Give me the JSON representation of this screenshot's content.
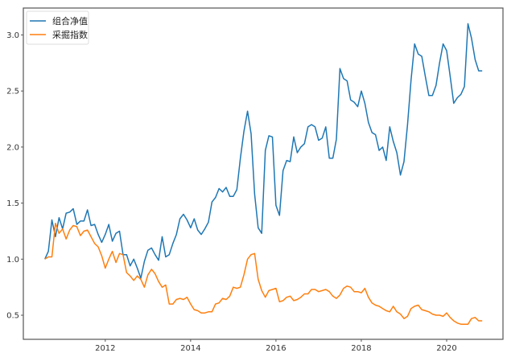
{
  "chart_data": {
    "type": "line",
    "title": "",
    "xlabel": "",
    "ylabel": "",
    "xlim": [
      2010.08,
      2021.32
    ],
    "ylim": [
      0.285,
      3.24
    ],
    "grid": false,
    "legend_position": "top-left",
    "x_ticks": [
      "2012",
      "2014",
      "2016",
      "2018",
      "2020"
    ],
    "y_ticks": [
      "0.5",
      "1.0",
      "1.5",
      "2.0",
      "2.5",
      "3.0"
    ],
    "x": [
      "2010-08",
      "2010-09",
      "2010-10",
      "2010-11",
      "2010-12",
      "2011-01",
      "2011-02",
      "2011-03",
      "2011-04",
      "2011-05",
      "2011-06",
      "2011-07",
      "2011-08",
      "2011-09",
      "2011-10",
      "2011-11",
      "2011-12",
      "2012-01",
      "2012-02",
      "2012-03",
      "2012-04",
      "2012-05",
      "2012-06",
      "2012-07",
      "2012-08",
      "2012-09",
      "2012-10",
      "2012-11",
      "2012-12",
      "2013-01",
      "2013-02",
      "2013-03",
      "2013-04",
      "2013-05",
      "2013-06",
      "2013-07",
      "2013-08",
      "2013-09",
      "2013-10",
      "2013-11",
      "2013-12",
      "2014-01",
      "2014-02",
      "2014-03",
      "2014-04",
      "2014-05",
      "2014-06",
      "2014-07",
      "2014-08",
      "2014-09",
      "2014-10",
      "2014-11",
      "2014-12",
      "2015-01",
      "2015-02",
      "2015-03",
      "2015-04",
      "2015-05",
      "2015-06",
      "2015-07",
      "2015-08",
      "2015-09",
      "2015-10",
      "2015-11",
      "2015-12",
      "2016-01",
      "2016-02",
      "2016-03",
      "2016-04",
      "2016-05",
      "2016-06",
      "2016-07",
      "2016-08",
      "2016-09",
      "2016-10",
      "2016-11",
      "2016-12",
      "2017-01",
      "2017-02",
      "2017-03",
      "2017-04",
      "2017-05",
      "2017-06",
      "2017-07",
      "2017-08",
      "2017-09",
      "2017-10",
      "2017-11",
      "2017-12",
      "2018-01",
      "2018-02",
      "2018-03",
      "2018-04",
      "2018-05",
      "2018-06",
      "2018-07",
      "2018-08",
      "2018-09",
      "2018-10",
      "2018-11",
      "2018-12",
      "2019-01",
      "2019-02",
      "2019-03",
      "2019-04",
      "2019-05",
      "2019-06",
      "2019-07",
      "2019-08",
      "2019-09",
      "2019-10",
      "2019-11",
      "2019-12",
      "2020-01",
      "2020-02",
      "2020-03",
      "2020-04",
      "2020-05",
      "2020-06",
      "2020-07",
      "2020-08",
      "2020-09",
      "2020-10",
      "2020-11"
    ],
    "series": [
      {
        "name": "组合净值",
        "color": "#1f77b4",
        "values": [
          1.0,
          1.07,
          1.35,
          1.2,
          1.37,
          1.27,
          1.41,
          1.42,
          1.45,
          1.31,
          1.34,
          1.34,
          1.44,
          1.3,
          1.31,
          1.22,
          1.15,
          1.22,
          1.31,
          1.16,
          1.23,
          1.25,
          1.04,
          1.04,
          0.94,
          1.0,
          0.92,
          0.83,
          0.98,
          1.08,
          1.1,
          1.04,
          0.99,
          1.2,
          1.02,
          1.04,
          1.14,
          1.22,
          1.36,
          1.4,
          1.35,
          1.28,
          1.36,
          1.26,
          1.22,
          1.27,
          1.33,
          1.51,
          1.55,
          1.63,
          1.6,
          1.64,
          1.56,
          1.56,
          1.62,
          1.9,
          2.14,
          2.32,
          2.12,
          1.58,
          1.28,
          1.23,
          1.97,
          2.1,
          2.09,
          1.48,
          1.39,
          1.79,
          1.88,
          1.87,
          2.09,
          1.95,
          2.0,
          2.03,
          2.18,
          2.2,
          2.18,
          2.06,
          2.08,
          2.18,
          1.9,
          1.9,
          2.07,
          2.7,
          2.61,
          2.59,
          2.42,
          2.4,
          2.36,
          2.5,
          2.39,
          2.22,
          2.13,
          2.11,
          1.97,
          2.0,
          1.88,
          2.18,
          2.05,
          1.95,
          1.75,
          1.87,
          2.2,
          2.6,
          2.92,
          2.83,
          2.81,
          2.63,
          2.46,
          2.46,
          2.55,
          2.75,
          2.92,
          2.86,
          2.63,
          2.39,
          2.44,
          2.47,
          2.54,
          3.1,
          2.97,
          2.78,
          2.68,
          2.68
        ]
      },
      {
        "name": "采掘指数",
        "color": "#ff7f0e",
        "values": [
          1.0,
          1.02,
          1.02,
          1.32,
          1.23,
          1.27,
          1.18,
          1.26,
          1.3,
          1.29,
          1.21,
          1.25,
          1.26,
          1.2,
          1.14,
          1.11,
          1.03,
          0.92,
          1.0,
          1.07,
          0.97,
          1.05,
          1.04,
          0.88,
          0.85,
          0.81,
          0.85,
          0.82,
          0.75,
          0.86,
          0.91,
          0.87,
          0.8,
          0.75,
          0.77,
          0.6,
          0.6,
          0.64,
          0.65,
          0.64,
          0.66,
          0.6,
          0.55,
          0.54,
          0.52,
          0.52,
          0.53,
          0.53,
          0.6,
          0.61,
          0.65,
          0.64,
          0.67,
          0.75,
          0.74,
          0.75,
          0.86,
          1.0,
          1.04,
          1.05,
          0.82,
          0.72,
          0.66,
          0.72,
          0.73,
          0.74,
          0.62,
          0.63,
          0.66,
          0.67,
          0.63,
          0.64,
          0.66,
          0.69,
          0.69,
          0.73,
          0.73,
          0.71,
          0.72,
          0.73,
          0.71,
          0.67,
          0.65,
          0.68,
          0.74,
          0.76,
          0.75,
          0.71,
          0.71,
          0.7,
          0.74,
          0.66,
          0.61,
          0.59,
          0.58,
          0.56,
          0.54,
          0.53,
          0.58,
          0.53,
          0.51,
          0.47,
          0.49,
          0.56,
          0.58,
          0.59,
          0.55,
          0.54,
          0.53,
          0.51,
          0.5,
          0.5,
          0.49,
          0.52,
          0.48,
          0.45,
          0.43,
          0.42,
          0.42,
          0.42,
          0.47,
          0.48,
          0.45,
          0.45
        ]
      }
    ]
  }
}
